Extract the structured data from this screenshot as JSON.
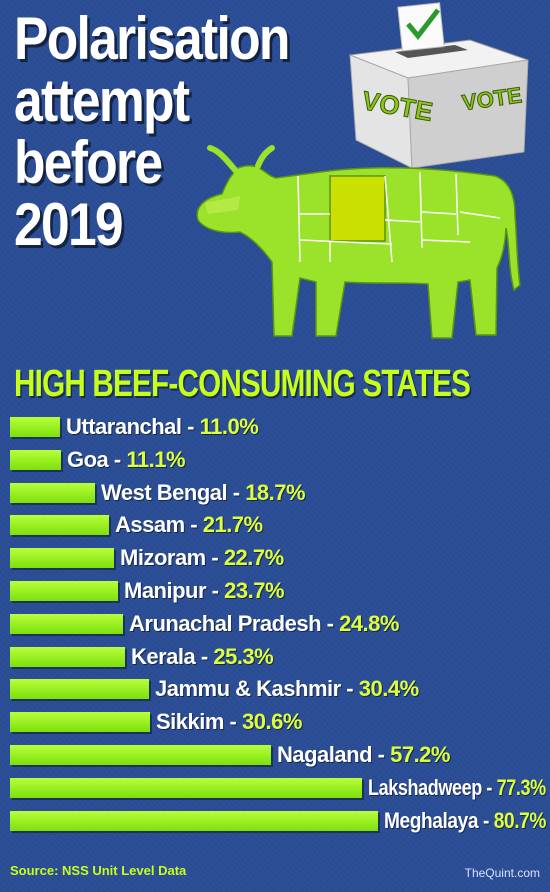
{
  "title_lines": [
    "Polarisation",
    "attempt",
    "before",
    "2019"
  ],
  "ballot_box": {
    "label_front": "VOTE",
    "label_side": "VOTE"
  },
  "icons": [
    "ballot-box-icon",
    "checkmark-icon",
    "cow-icon"
  ],
  "colors": {
    "background": "#2a4d95",
    "bar": "#9ef01a",
    "accent_text": "#c6ff1c",
    "highlight": "#c9e000"
  },
  "source": "Source: NSS Unit Level Data",
  "brand": "TheQuint.com",
  "chart_data": {
    "type": "bar",
    "orientation": "horizontal",
    "title": "HIGH BEEF-CONSUMING STATES",
    "categories": [
      "Uttaranchal",
      "Goa",
      "West Bengal",
      "Assam",
      "Mizoram",
      "Manipur",
      "Arunachal Pradesh",
      "Kerala",
      "Jammu & Kashmir",
      "Sikkim",
      "Nagaland",
      "Lakshadweep",
      "Meghalaya"
    ],
    "values": [
      11.0,
      11.1,
      18.7,
      21.7,
      22.7,
      23.7,
      24.8,
      25.3,
      30.4,
      30.6,
      57.2,
      77.3,
      80.7
    ],
    "value_labels": [
      "11.0%",
      "11.1%",
      "18.7%",
      "21.7%",
      "22.7%",
      "23.7%",
      "24.8%",
      "25.3%",
      "30.4%",
      "30.6%",
      "57.2%",
      "77.3%",
      "80.7%"
    ],
    "xlim": [
      0,
      100
    ],
    "grid": false,
    "legend": "none"
  }
}
